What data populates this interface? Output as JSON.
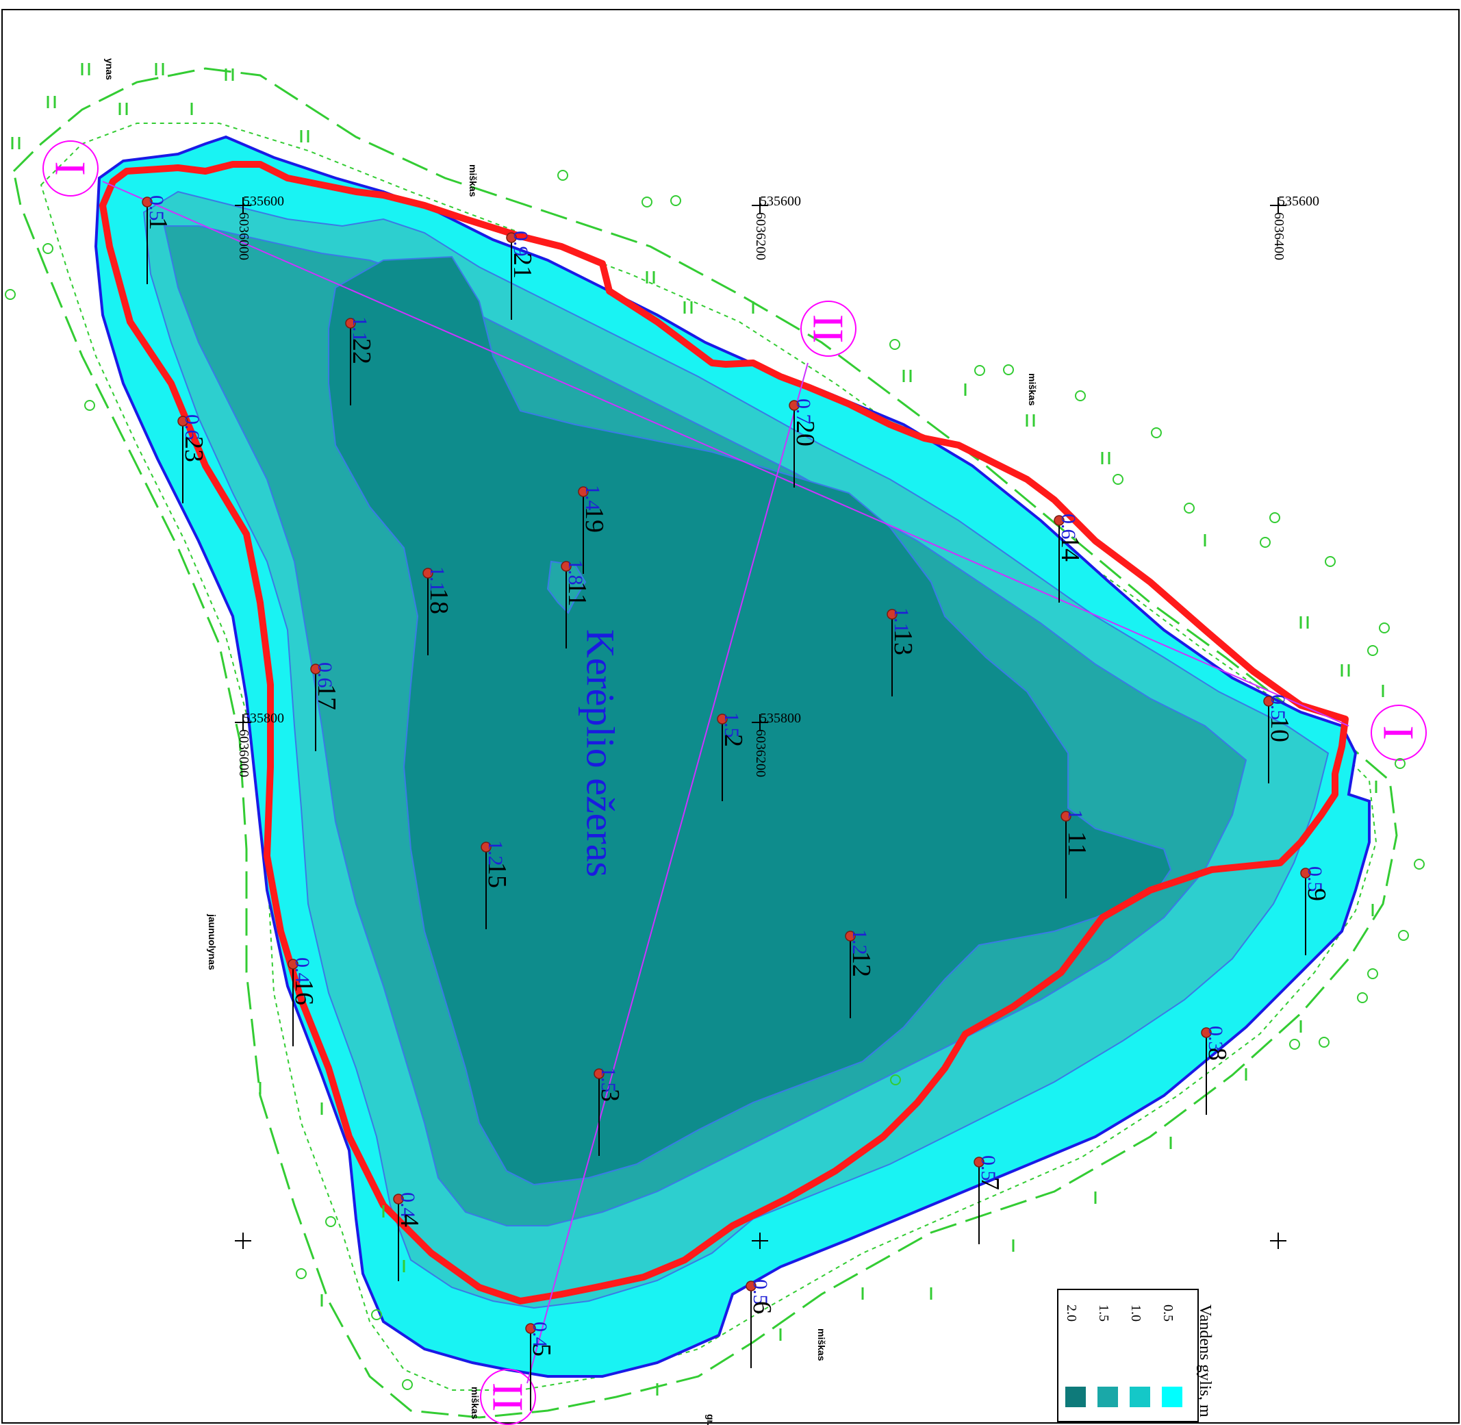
{
  "lake_name": "Kerėplio ežeras",
  "sections": {
    "I": "I",
    "II": "II"
  },
  "places": {
    "forest": "miškas",
    "young_forest": "jaunuolynas",
    "edge_fragment": "ynas",
    "bottom_fragment": "gr."
  },
  "coords": {
    "x1": "535600",
    "x2": "535800",
    "y1": "6036000",
    "y2": "6036200",
    "y3": "6036400"
  },
  "legend": {
    "title": "Vandens gylis, m",
    "items": [
      {
        "label": "0.5",
        "color": "#00ffff"
      },
      {
        "label": "1.0",
        "color": "#14c8c8"
      },
      {
        "label": "1.5",
        "color": "#1aa8a8"
      },
      {
        "label": "2.0",
        "color": "#0e7a7a"
      }
    ]
  },
  "colors": {
    "shallow": "#19f3f3",
    "mid": "#2dcfcf",
    "deep": "#21a8a8",
    "deepest": "#0e8c8c",
    "shore": "#1a1ae6",
    "boundary": "#ff1a1a",
    "profile": "#cc33ff",
    "vegetation": "#33cc33"
  },
  "stations": [
    {
      "id": "1",
      "depth": "0.5"
    },
    {
      "id": "21",
      "depth": "0.9"
    },
    {
      "id": "22",
      "depth": "1.1"
    },
    {
      "id": "23",
      "depth": "0.6"
    },
    {
      "id": "20",
      "depth": "0.7"
    },
    {
      "id": "19",
      "depth": "1.4"
    },
    {
      "id": "18",
      "depth": "1.1"
    },
    {
      "id": "11",
      "depth": "1.8"
    },
    {
      "id": "14",
      "depth": "0.6"
    },
    {
      "id": "13",
      "depth": "1.1"
    },
    {
      "id": "17",
      "depth": "0.6"
    },
    {
      "id": "2",
      "depth": "1.5"
    },
    {
      "id": "10",
      "depth": "0.5"
    },
    {
      "id": "11",
      "depth": "1"
    },
    {
      "id": "15",
      "depth": "1.2"
    },
    {
      "id": "9",
      "depth": "0.5"
    },
    {
      "id": "12",
      "depth": "1.2"
    },
    {
      "id": "16",
      "depth": "0.4"
    },
    {
      "id": "3",
      "depth": "1.5"
    },
    {
      "id": "8",
      "depth": "0.3"
    },
    {
      "id": "7",
      "depth": "0.5"
    },
    {
      "id": "4",
      "depth": "0.4"
    },
    {
      "id": "6",
      "depth": "0.5"
    },
    {
      "id": "5",
      "depth": "0.4"
    }
  ]
}
